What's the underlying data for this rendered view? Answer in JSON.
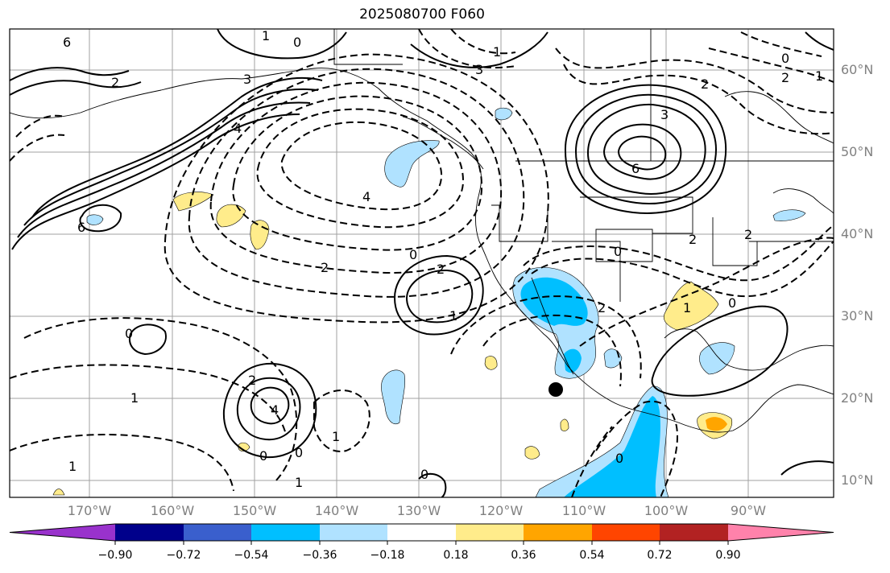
{
  "title": "2025080700 F060",
  "map": {
    "lat_labels": [
      "60°N",
      "50°N",
      "40°N",
      "30°N",
      "20°N",
      "10°N"
    ],
    "lon_labels": [
      "170°W",
      "160°W",
      "150°W",
      "140°W",
      "130°W",
      "120°W",
      "110°W",
      "100°W",
      "90°W"
    ],
    "contour_labels": [
      "6",
      "1",
      "0",
      "2",
      "3",
      "4",
      "6",
      "4",
      "2",
      "0",
      "1",
      "2",
      "4",
      "3",
      "1",
      "0",
      "2",
      "0",
      "1",
      "2",
      "1",
      "0",
      "2",
      "3",
      "2",
      "1",
      "6",
      "2",
      "0",
      "1",
      "2",
      "0",
      "1",
      "0",
      "0",
      "0",
      "1"
    ],
    "marker": "black-dot"
  },
  "colorbar": {
    "ticks": [
      "−0.90",
      "−0.72",
      "−0.54",
      "−0.36",
      "−0.18",
      "0.18",
      "0.36",
      "0.54",
      "0.72",
      "0.90"
    ],
    "colors": [
      "#9932cc",
      "#00008b",
      "#3a5fcd",
      "#00bfff",
      "#b0e2ff",
      "#ffffff",
      "#ffec8b",
      "#ffa500",
      "#ff4500",
      "#b22222",
      "#ff82ab"
    ]
  }
}
